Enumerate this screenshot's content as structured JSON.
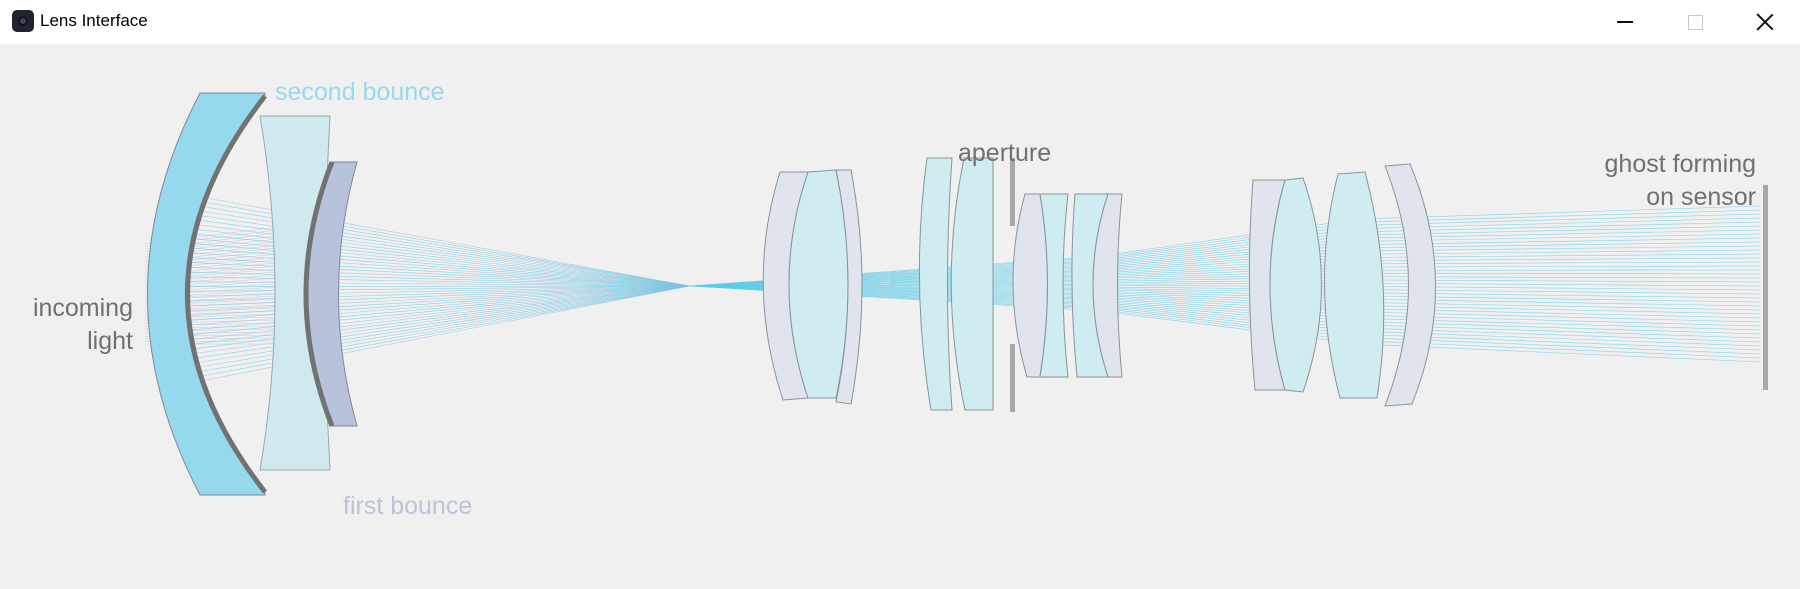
{
  "window": {
    "title": "Lens Interface",
    "controls": {
      "minimize": "minimize",
      "maximize": "maximize",
      "close": "close"
    }
  },
  "labels": {
    "incoming_line1": "incoming",
    "incoming_line2": "light",
    "second_bounce": "second bounce",
    "first_bounce": "first bounce",
    "aperture": "aperture",
    "ghost_line1": "ghost forming",
    "ghost_line2": "on sensor"
  },
  "colors": {
    "background": "#f0f0f0",
    "glass_cyan": "#cfecf0",
    "glass_grey": "#e0e4ec",
    "front_element": "#96d8ee",
    "first_bounce_element": "#b8c2dc",
    "ray": "#5fcbe8",
    "ray_reflected": "#aab6d6",
    "label_text": "#707070",
    "second_bounce_text": "#9ad8ec",
    "first_bounce_text": "#b9c4da"
  }
}
